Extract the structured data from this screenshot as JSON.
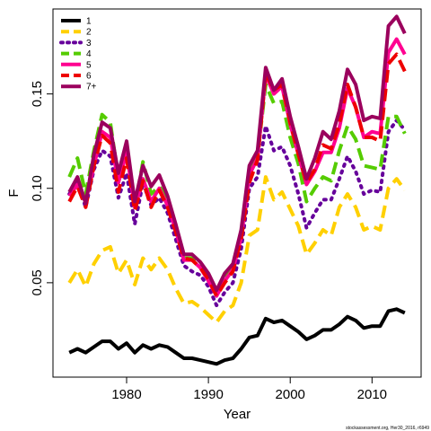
{
  "chart_data": {
    "type": "line",
    "title": "",
    "xlabel": "Year",
    "ylabel": "F",
    "xlim": [
      1971,
      2016
    ],
    "ylim": [
      0.0,
      0.195
    ],
    "x_ticks": [
      1980,
      1990,
      2000,
      2010
    ],
    "y_ticks": [
      0.05,
      0.1,
      0.15
    ],
    "y_tick_labels": [
      "0.05",
      "0.10",
      "0.15"
    ],
    "legend_position": "top-left",
    "grid": false,
    "footer": "stockassessment.org, Her30_2016, r6949",
    "x": [
      1973,
      1974,
      1975,
      1976,
      1977,
      1978,
      1979,
      1980,
      1981,
      1982,
      1983,
      1984,
      1985,
      1986,
      1987,
      1988,
      1989,
      1990,
      1991,
      1992,
      1993,
      1994,
      1995,
      1996,
      1997,
      1998,
      1999,
      2000,
      2001,
      2002,
      2003,
      2004,
      2005,
      2006,
      2007,
      2008,
      2009,
      2010,
      2011,
      2012,
      2013,
      2014
    ],
    "series": [
      {
        "name": "1",
        "color": "#000000",
        "dash": "solid",
        "width": 4,
        "values": [
          0.013,
          0.015,
          0.013,
          0.016,
          0.019,
          0.019,
          0.015,
          0.018,
          0.013,
          0.017,
          0.015,
          0.017,
          0.016,
          0.013,
          0.01,
          0.01,
          0.009,
          0.008,
          0.007,
          0.009,
          0.01,
          0.015,
          0.021,
          0.022,
          0.031,
          0.029,
          0.03,
          0.027,
          0.024,
          0.02,
          0.022,
          0.025,
          0.025,
          0.028,
          0.032,
          0.03,
          0.026,
          0.027,
          0.027,
          0.035,
          0.036,
          0.034
        ]
      },
      {
        "name": "2",
        "color": "#ffd000",
        "dash": "dashed",
        "width": 4,
        "values": [
          0.05,
          0.057,
          0.048,
          0.06,
          0.067,
          0.069,
          0.055,
          0.062,
          0.049,
          0.063,
          0.057,
          0.063,
          0.057,
          0.047,
          0.039,
          0.04,
          0.037,
          0.033,
          0.029,
          0.035,
          0.038,
          0.05,
          0.075,
          0.078,
          0.106,
          0.094,
          0.098,
          0.089,
          0.08,
          0.065,
          0.071,
          0.078,
          0.075,
          0.09,
          0.097,
          0.09,
          0.078,
          0.08,
          0.078,
          0.1,
          0.105,
          0.099
        ]
      },
      {
        "name": "3",
        "color": "#66009b",
        "dash": "dotted",
        "width": 4,
        "values": [
          0.097,
          0.103,
          0.09,
          0.11,
          0.12,
          0.117,
          0.095,
          0.108,
          0.081,
          0.103,
          0.091,
          0.095,
          0.087,
          0.073,
          0.059,
          0.056,
          0.054,
          0.048,
          0.038,
          0.045,
          0.05,
          0.068,
          0.1,
          0.106,
          0.133,
          0.12,
          0.122,
          0.112,
          0.097,
          0.079,
          0.087,
          0.094,
          0.094,
          0.105,
          0.117,
          0.109,
          0.097,
          0.099,
          0.098,
          0.13,
          0.136,
          0.131
        ]
      },
      {
        "name": "4",
        "color": "#55cc00",
        "dash": "dashed",
        "width": 4,
        "values": [
          0.106,
          0.116,
          0.097,
          0.12,
          0.139,
          0.135,
          0.105,
          0.123,
          0.09,
          0.114,
          0.097,
          0.101,
          0.095,
          0.08,
          0.063,
          0.063,
          0.06,
          0.054,
          0.043,
          0.052,
          0.058,
          0.076,
          0.111,
          0.117,
          0.155,
          0.145,
          0.146,
          0.127,
          0.113,
          0.093,
          0.1,
          0.106,
          0.104,
          0.12,
          0.133,
          0.126,
          0.112,
          0.111,
          0.11,
          0.138,
          0.138,
          0.129
        ]
      },
      {
        "name": "5",
        "color": "#ff0090",
        "dash": "solid",
        "width": 4,
        "values": [
          0.096,
          0.102,
          0.093,
          0.112,
          0.13,
          0.127,
          0.103,
          0.119,
          0.09,
          0.105,
          0.093,
          0.1,
          0.091,
          0.078,
          0.062,
          0.062,
          0.058,
          0.051,
          0.043,
          0.051,
          0.057,
          0.074,
          0.107,
          0.116,
          0.16,
          0.15,
          0.154,
          0.134,
          0.118,
          0.102,
          0.109,
          0.119,
          0.119,
          0.132,
          0.153,
          0.143,
          0.127,
          0.13,
          0.129,
          0.172,
          0.179,
          0.171
        ]
      },
      {
        "name": "6",
        "color": "#ee0000",
        "dash": "dashed",
        "width": 4,
        "values": [
          0.093,
          0.101,
          0.09,
          0.112,
          0.128,
          0.124,
          0.098,
          0.116,
          0.088,
          0.104,
          0.09,
          0.099,
          0.09,
          0.077,
          0.063,
          0.062,
          0.058,
          0.052,
          0.043,
          0.05,
          0.056,
          0.073,
          0.103,
          0.115,
          0.161,
          0.152,
          0.155,
          0.135,
          0.118,
          0.103,
          0.11,
          0.123,
          0.121,
          0.134,
          0.155,
          0.143,
          0.127,
          0.127,
          0.125,
          0.166,
          0.171,
          0.162
        ]
      },
      {
        "name": "7+",
        "color": "#9b005d",
        "dash": "solid",
        "width": 4,
        "values": [
          0.098,
          0.106,
          0.092,
          0.118,
          0.135,
          0.132,
          0.108,
          0.125,
          0.093,
          0.112,
          0.101,
          0.107,
          0.096,
          0.081,
          0.065,
          0.065,
          0.061,
          0.055,
          0.046,
          0.055,
          0.06,
          0.078,
          0.112,
          0.12,
          0.164,
          0.152,
          0.158,
          0.138,
          0.122,
          0.105,
          0.116,
          0.13,
          0.126,
          0.141,
          0.163,
          0.155,
          0.136,
          0.138,
          0.137,
          0.186,
          0.191,
          0.182
        ]
      }
    ]
  }
}
